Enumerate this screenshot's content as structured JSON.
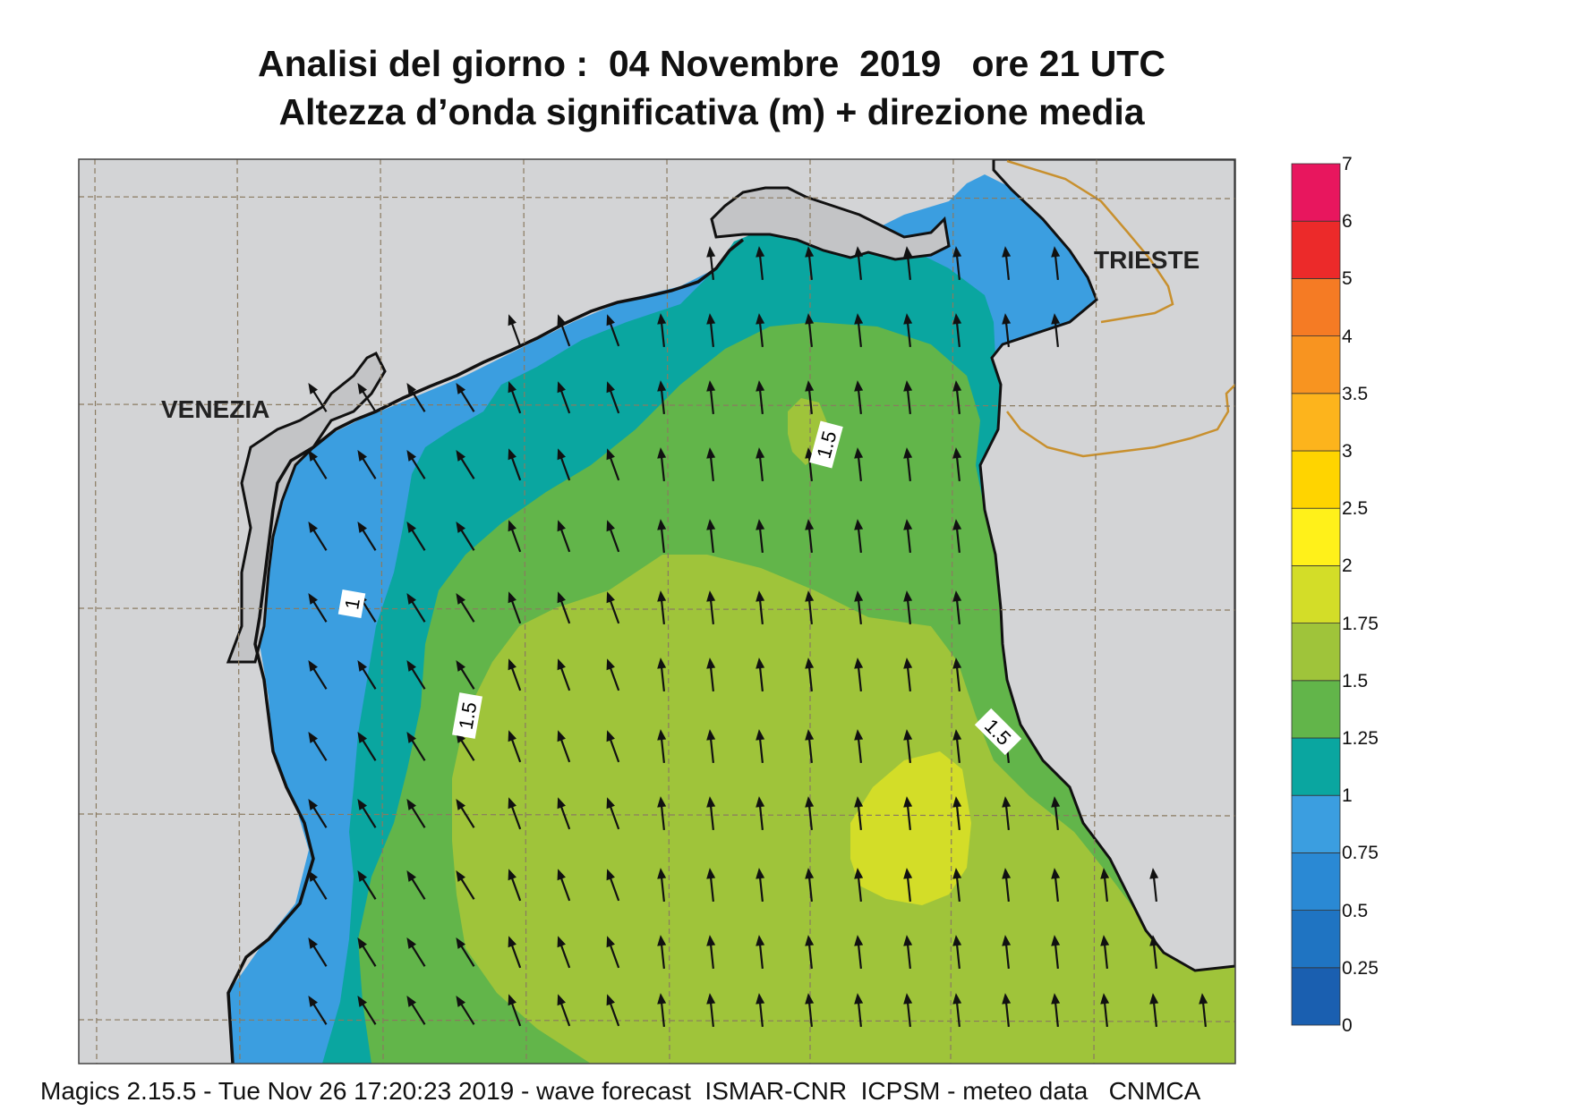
{
  "title_line1": "Analisi del giorno :  04 Novembre  2019   ore 21 UTC",
  "title_line2": "Altezza d’onda significativa (m) + direzione media",
  "cities": [
    "VENEZIA",
    "TRIESTE"
  ],
  "contour_labels": [
    "1",
    "1.5",
    "1.5",
    "1.5"
  ],
  "footer": "Magics 2.15.5 - Tue Nov 26 17:20:23 2019 - wave forecast  ISMAR-CNR  ICPSM - meteo data   CNMCA",
  "colorbar": {
    "unit": "m",
    "levels": [
      "0",
      "0.25",
      "0.5",
      "0.75",
      "1",
      "1.25",
      "1.5",
      "1.75",
      "2",
      "2.5",
      "3",
      "3.5",
      "4",
      "5",
      "6",
      "7"
    ],
    "colors": [
      "#1a5fb0",
      "#1f74c2",
      "#2a89d4",
      "#3b9ee0",
      "#0aa6a0",
      "#62b54a",
      "#9fc43a",
      "#d3dd28",
      "#fff11a",
      "#ffd400",
      "#fdb41c",
      "#f89420",
      "#f57b24",
      "#ec2a2a",
      "#e8165e"
    ]
  },
  "map_colors": {
    "land": "#d3d4d6",
    "band_0_75_1": "#3b9ee0",
    "band_0_5_0_75": "#2a89d4",
    "band_1_1_25": "#0aa6a0",
    "band_1_25_1_5": "#62b54a",
    "band_1_5_1_75": "#9fc43a",
    "band_1_75_2": "#d3dd28",
    "coast": "#111111",
    "border": "#c8902e",
    "grid": "#8a7a60"
  },
  "wave_direction": "toward N / NNW"
}
